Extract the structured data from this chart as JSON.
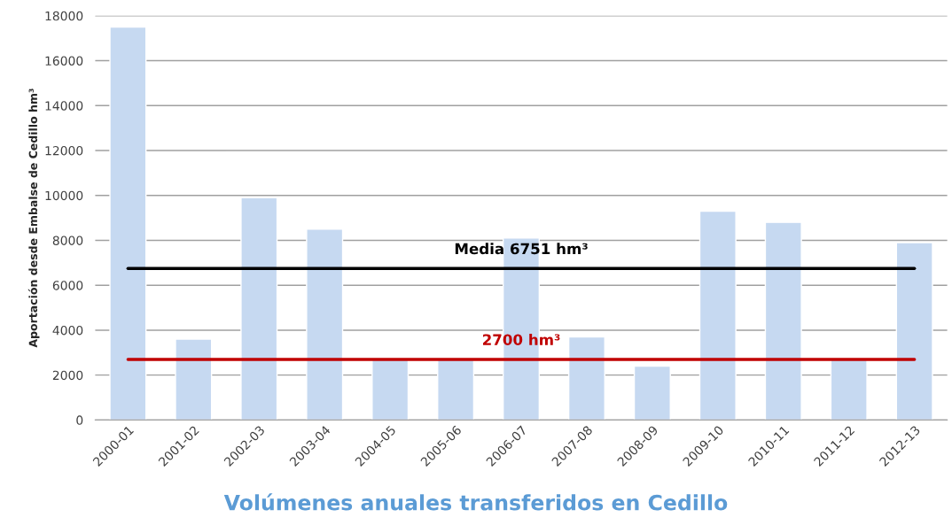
{
  "chart_data": {
    "type": "bar",
    "title": "Volúmenes anuales transferidos en Cedillo",
    "ylabel": "Aportación desde Embalse de Cedillo hm³",
    "categories": [
      "2000-01",
      "2001-02",
      "2002-03",
      "2003-04",
      "2004-05",
      "2005-06",
      "2006-07",
      "2007-08",
      "2008-09",
      "2009-10",
      "2010-11",
      "2011-12",
      "2012-13"
    ],
    "values": [
      17500,
      3600,
      9900,
      8500,
      2700,
      2700,
      8100,
      3700,
      2400,
      9300,
      8800,
      2700,
      7900
    ],
    "color": "#c6d9f1",
    "ylim": [
      0,
      18000
    ],
    "yticks": [
      0,
      2000,
      4000,
      6000,
      8000,
      10000,
      12000,
      14000,
      16000,
      18000
    ],
    "grid": "y",
    "ref_lines": [
      {
        "axis": "y",
        "value": 6751,
        "label": "Media 6751 hm³",
        "color": "#000000"
      },
      {
        "axis": "y",
        "value": 2700,
        "label": "2700 hm³",
        "color": "#c00000"
      }
    ]
  }
}
